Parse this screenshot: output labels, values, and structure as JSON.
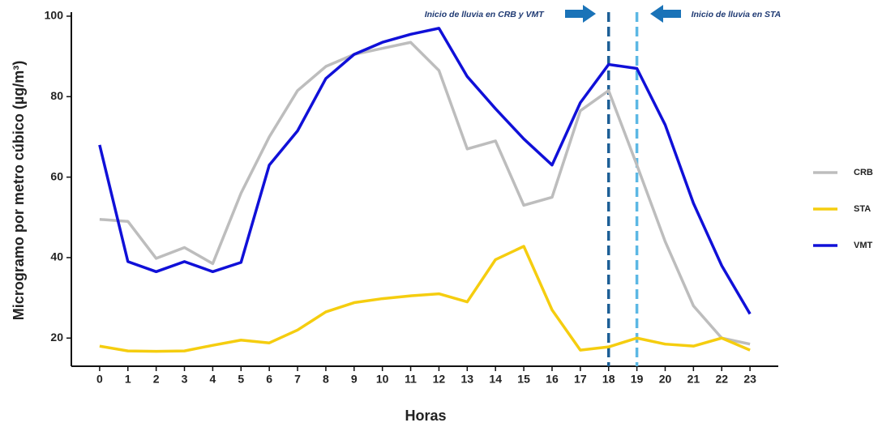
{
  "chart_data": {
    "type": "line",
    "x_label": "Horas",
    "y_label": "Microgramo por metro cúbico (µg/m³)",
    "x": [
      0,
      1,
      2,
      3,
      4,
      5,
      6,
      7,
      8,
      9,
      10,
      11,
      12,
      13,
      14,
      15,
      16,
      17,
      18,
      19,
      20,
      21,
      22,
      23
    ],
    "xlim": [
      -1,
      24
    ],
    "xticks": [
      0,
      1,
      2,
      3,
      4,
      5,
      6,
      7,
      8,
      9,
      10,
      11,
      12,
      13,
      14,
      15,
      16,
      17,
      18,
      19,
      20,
      21,
      22,
      23
    ],
    "ylim": [
      13,
      101
    ],
    "yticks": [
      20,
      40,
      60,
      80,
      100
    ],
    "grid": false,
    "series": [
      {
        "name": "CRB",
        "color": "#bdbdbd",
        "values": [
          49.5,
          49,
          39.8,
          42.5,
          38.5,
          56,
          70,
          81.5,
          87.5,
          90.5,
          92,
          93.5,
          86.5,
          67,
          69,
          53,
          55,
          76.5,
          81.5,
          63,
          44,
          28,
          20,
          18.5
        ]
      },
      {
        "name": "STA",
        "color": "#f5cd0f",
        "values": [
          18,
          16.8,
          16.7,
          16.8,
          18.2,
          19.5,
          18.8,
          22,
          26.5,
          28.8,
          29.8,
          30.5,
          31,
          29,
          39.5,
          42.8,
          27,
          17,
          17.8,
          20,
          18.5,
          18,
          20,
          17
        ]
      },
      {
        "name": "VMT",
        "color": "#1010d8",
        "values": [
          68,
          39,
          36.5,
          39,
          36.5,
          38.8,
          63,
          71.5,
          84.5,
          90.5,
          93.5,
          95.5,
          97,
          85,
          77,
          69.5,
          63,
          78.5,
          88,
          87,
          73,
          53.5,
          38,
          26
        ]
      }
    ],
    "vlines": [
      {
        "x": 18,
        "color": "#1d5f96",
        "label": "Inicio de lluvia en CRB y VMT"
      },
      {
        "x": 19,
        "color": "#5cb8e4",
        "label": "Inicio de lluvia en STA"
      }
    ]
  }
}
